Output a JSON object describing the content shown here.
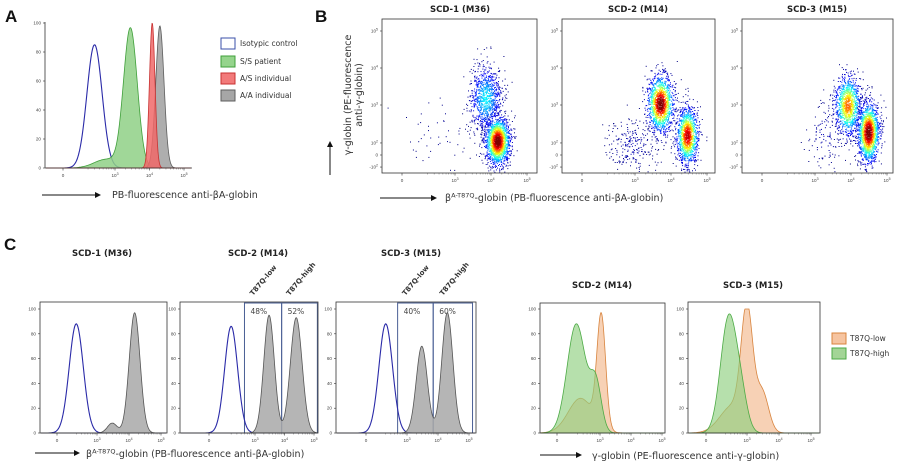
{
  "panels": {
    "a": "A",
    "b": "B",
    "c": "C"
  },
  "labels": {
    "a_xlabel": "PB-fluorescence anti-βA-globin",
    "b_ylabel_1": "γ-globin (PE-fluorescence",
    "b_ylabel_2": "anti-γ-globin)",
    "beta": "β",
    "beta_sup": "A-T87Q",
    "beta_rest": "-globin (PB-fluorescence anti-βA-globin)",
    "c_right_xlabel": "γ-globin (PE-fluorescence anti-γ-globin)"
  },
  "legend_a": [
    {
      "label": "Isotypic control",
      "fill": "#ffffff",
      "stroke": "#3a4fa8"
    },
    {
      "label": "S/S patient",
      "fill": "#95d48c",
      "stroke": "#3f9f3a"
    },
    {
      "label": "A/S individual",
      "fill": "#f27a7a",
      "stroke": "#c83232"
    },
    {
      "label": "A/A individual",
      "fill": "#a6a6a6",
      "stroke": "#5e5e5e"
    }
  ],
  "legend_c": [
    {
      "label": "T87Q-low",
      "fill": "#f6c4a0",
      "stroke": "#d8843e"
    },
    {
      "label": "T87Q-high",
      "fill": "#a3d596",
      "stroke": "#4caa45"
    }
  ],
  "chart_data": [
    {
      "type": "histogram",
      "title": "",
      "xlabel": "PB-fluorescence anti-βA-globin",
      "ylim": [
        0,
        100
      ],
      "yticks": [
        "0",
        "20",
        "40",
        "60",
        "80",
        "100"
      ],
      "xticks": [
        "0",
        "10^3",
        "10^4",
        "10^5"
      ],
      "legend": "right",
      "series": [
        {
          "name": "Isotypic control",
          "fill": "none",
          "stroke": "#2a2aa8",
          "peaks": [
            {
              "center": 300,
              "height": 85,
              "spread": 0.22
            }
          ]
        },
        {
          "name": "S/S patient",
          "fill": "#8fd086",
          "stroke": "#3f9f3a",
          "peaks": [
            {
              "center": 2800,
              "height": 96,
              "spread": 0.2
            },
            {
              "center": 600,
              "height": 6,
              "spread": 0.35
            }
          ]
        },
        {
          "name": "A/A individual",
          "fill": "#a0a0a0",
          "stroke": "#5e5e5e",
          "peaks": [
            {
              "center": 20000,
              "height": 98,
              "spread": 0.12
            }
          ]
        },
        {
          "name": "A/S individual",
          "fill": "#f06868",
          "stroke": "#c83232",
          "peaks": [
            {
              "center": 12000,
              "height": 100,
              "spread": 0.08
            }
          ]
        }
      ]
    },
    {
      "type": "scatter",
      "title": "SCD-1 (M36)",
      "xticks": [
        "0",
        "10^3",
        "10^4",
        "10^5"
      ],
      "yticks": [
        "-10^2",
        "0",
        "10^2",
        "10^3",
        "10^4",
        "10^5"
      ],
      "clusters": [
        {
          "x": 15000,
          "y": 120,
          "spread_x": 0.17,
          "spread_y": 0.32,
          "weight": 1.0,
          "n": 1800
        },
        {
          "x": 7000,
          "y": 1500,
          "spread_x": 0.22,
          "spread_y": 0.45,
          "weight": 0.35,
          "n": 900
        },
        {
          "x": 400,
          "y": 300,
          "spread_x": 0.5,
          "spread_y": 0.6,
          "weight": 0.02,
          "n": 50
        }
      ]
    },
    {
      "type": "scatter",
      "title": "SCD-2 (M14)",
      "xticks": [
        "0",
        "10^3",
        "10^4",
        "10^5"
      ],
      "yticks": [
        "-10^2",
        "0",
        "10^2",
        "10^3",
        "10^4",
        "10^5"
      ],
      "clusters": [
        {
          "x": 5000,
          "y": 1100,
          "spread_x": 0.18,
          "spread_y": 0.38,
          "weight": 1.0,
          "n": 1400
        },
        {
          "x": 28000,
          "y": 180,
          "spread_x": 0.15,
          "spread_y": 0.38,
          "weight": 0.9,
          "n": 1300
        },
        {
          "x": 800,
          "y": 80,
          "spread_x": 0.35,
          "spread_y": 0.4,
          "weight": 0.05,
          "n": 250
        }
      ]
    },
    {
      "type": "scatter",
      "title": "SCD-3 (M15)",
      "xticks": [
        "0",
        "10^3",
        "10^4",
        "10^5"
      ],
      "yticks": [
        "-10^2",
        "0",
        "10^2",
        "10^3",
        "10^4",
        "10^5"
      ],
      "clusters": [
        {
          "x": 8000,
          "y": 1000,
          "spread_x": 0.18,
          "spread_y": 0.4,
          "weight": 0.75,
          "n": 1100
        },
        {
          "x": 30000,
          "y": 220,
          "spread_x": 0.15,
          "spread_y": 0.4,
          "weight": 1.0,
          "n": 1600
        },
        {
          "x": 2000,
          "y": 200,
          "spread_x": 0.3,
          "spread_y": 0.5,
          "weight": 0.05,
          "n": 120
        }
      ]
    },
    {
      "type": "histogram",
      "title": "SCD-1 (M36)",
      "ylim": [
        0,
        100
      ],
      "yticks": [
        "0",
        "20",
        "40",
        "60",
        "80",
        "100"
      ],
      "xticks": [
        "0",
        "10^3",
        "10^4",
        "10^5"
      ],
      "series": [
        {
          "fill": "none",
          "stroke": "#2a2aa8",
          "peaks": [
            {
              "center": 200,
              "height": 88,
              "spread": 0.22
            }
          ]
        },
        {
          "fill": "#a8a8a8",
          "stroke": "#555555",
          "peaks": [
            {
              "center": 15000,
              "height": 97,
              "spread": 0.17
            },
            {
              "center": 3000,
              "height": 8,
              "spread": 0.15
            }
          ]
        }
      ]
    },
    {
      "type": "histogram",
      "title": "SCD-2 (M14)",
      "ylim": [
        0,
        100
      ],
      "yticks": [
        "0",
        "20",
        "40",
        "60",
        "80",
        "100"
      ],
      "xticks": [
        "0",
        "10^3",
        "10^4",
        "10^5"
      ],
      "gates": [
        {
          "label": "T87Q-low",
          "percent": "48%",
          "from": 500,
          "to": 8000
        },
        {
          "label": "T87Q-high",
          "percent": "52%",
          "from": 8000,
          "to": 130000
        }
      ],
      "series": [
        {
          "fill": "none",
          "stroke": "#2a2aa8",
          "peaks": [
            {
              "center": 200,
              "height": 86,
              "spread": 0.22
            }
          ]
        },
        {
          "fill": "#a8a8a8",
          "stroke": "#555555",
          "peaks": [
            {
              "center": 3000,
              "height": 95,
              "spread": 0.18
            },
            {
              "center": 25000,
              "height": 93,
              "spread": 0.2
            }
          ]
        }
      ]
    },
    {
      "type": "histogram",
      "title": "SCD-3 (M15)",
      "ylim": [
        0,
        100
      ],
      "yticks": [
        "0",
        "20",
        "40",
        "60",
        "80",
        "100"
      ],
      "xticks": [
        "0",
        "10^3",
        "10^4",
        "10^5"
      ],
      "gates": [
        {
          "label": "T87Q-low",
          "percent": "40%",
          "from": 500,
          "to": 7000
        },
        {
          "label": "T87Q-high",
          "percent": "60%",
          "from": 7000,
          "to": 130000
        }
      ],
      "series": [
        {
          "fill": "none",
          "stroke": "#2a2aa8",
          "peaks": [
            {
              "center": 200,
              "height": 88,
              "spread": 0.22
            }
          ]
        },
        {
          "fill": "#a8a8a8",
          "stroke": "#555555",
          "peaks": [
            {
              "center": 3000,
              "height": 70,
              "spread": 0.18
            },
            {
              "center": 20000,
              "height": 97,
              "spread": 0.18
            }
          ]
        }
      ]
    },
    {
      "type": "histogram",
      "title": "SCD-2 (M14)",
      "ylim": [
        0,
        100
      ],
      "yticks": [
        "0",
        "20",
        "40",
        "60",
        "80",
        "100"
      ],
      "xticks": [
        "0",
        "10^3",
        "10^4",
        "10^5"
      ],
      "legend": "right",
      "series": [
        {
          "name": "T87Q-low",
          "fill": "#f3b98e",
          "stroke": "#d8843e",
          "peaks": [
            {
              "center": 250,
              "height": 28,
              "spread": 0.4
            },
            {
              "center": 1100,
              "height": 90,
              "spread": 0.14
            }
          ]
        },
        {
          "name": "T87Q-high",
          "fill": "#8fcf80",
          "stroke": "#4caa45",
          "peaks": [
            {
              "center": 180,
              "height": 88,
              "spread": 0.3
            },
            {
              "center": 750,
              "height": 38,
              "spread": 0.18
            }
          ]
        }
      ]
    },
    {
      "type": "histogram",
      "title": "SCD-3 (M15)",
      "ylim": [
        0,
        100
      ],
      "yticks": [
        "0",
        "20",
        "40",
        "60",
        "80",
        "100"
      ],
      "xticks": [
        "0",
        "10^3",
        "10^4",
        "10^5"
      ],
      "legend": "right",
      "series": [
        {
          "name": "T87Q-low",
          "fill": "#f3b98e",
          "stroke": "#d8843e",
          "peaks": [
            {
              "center": 350,
              "height": 22,
              "spread": 0.4
            },
            {
              "center": 1000,
              "height": 92,
              "spread": 0.18
            },
            {
              "center": 3000,
              "height": 32,
              "spread": 0.2
            }
          ]
        },
        {
          "name": "T87Q-high",
          "fill": "#8fcf80",
          "stroke": "#4caa45",
          "peaks": [
            {
              "center": 250,
              "height": 92,
              "spread": 0.25
            },
            {
              "center": 650,
              "height": 25,
              "spread": 0.2
            }
          ]
        }
      ]
    }
  ]
}
